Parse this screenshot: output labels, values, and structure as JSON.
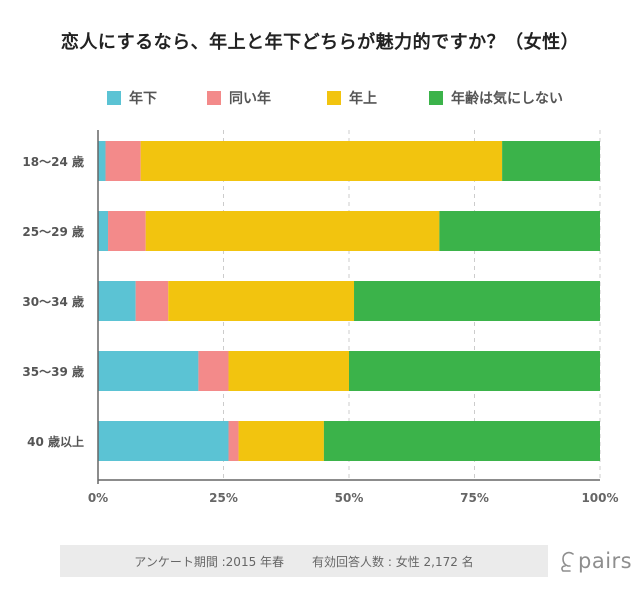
{
  "chart_data": {
    "type": "bar",
    "orientation": "horizontal",
    "stacked": true,
    "title": "恋人にするなら、年上と年下どちらが魅力的ですか？（女性）",
    "categories": [
      "18〜24 歳",
      "25〜29 歳",
      "30〜34 歳",
      "35〜39 歳",
      "40 歳以上"
    ],
    "series": [
      {
        "name": "年下",
        "color": "#5bc3d4",
        "values": [
          1.5,
          2,
          7.5,
          20,
          26
        ]
      },
      {
        "name": "同い年",
        "color": "#f38a8a",
        "values": [
          7,
          7.5,
          6.5,
          6,
          2
        ]
      },
      {
        "name": "年上",
        "color": "#f2c40f",
        "values": [
          72,
          58.5,
          37,
          24,
          17
        ]
      },
      {
        "name": "年齢は気にしない",
        "color": "#3bb34a",
        "values": [
          19.5,
          32,
          49,
          50,
          55
        ]
      }
    ],
    "xlim": [
      0,
      100
    ],
    "xticks": [
      0,
      25,
      50,
      75,
      100
    ],
    "xtick_labels": [
      "0%",
      "25%",
      "50%",
      "75%",
      "100%"
    ],
    "grid": true,
    "legend_position": "top"
  },
  "footer": {
    "survey_period": "アンケート期間 :2015 年春",
    "respondents": "有効回答人数 : 女性 2,172 名"
  },
  "logo": {
    "text": "pairs"
  }
}
